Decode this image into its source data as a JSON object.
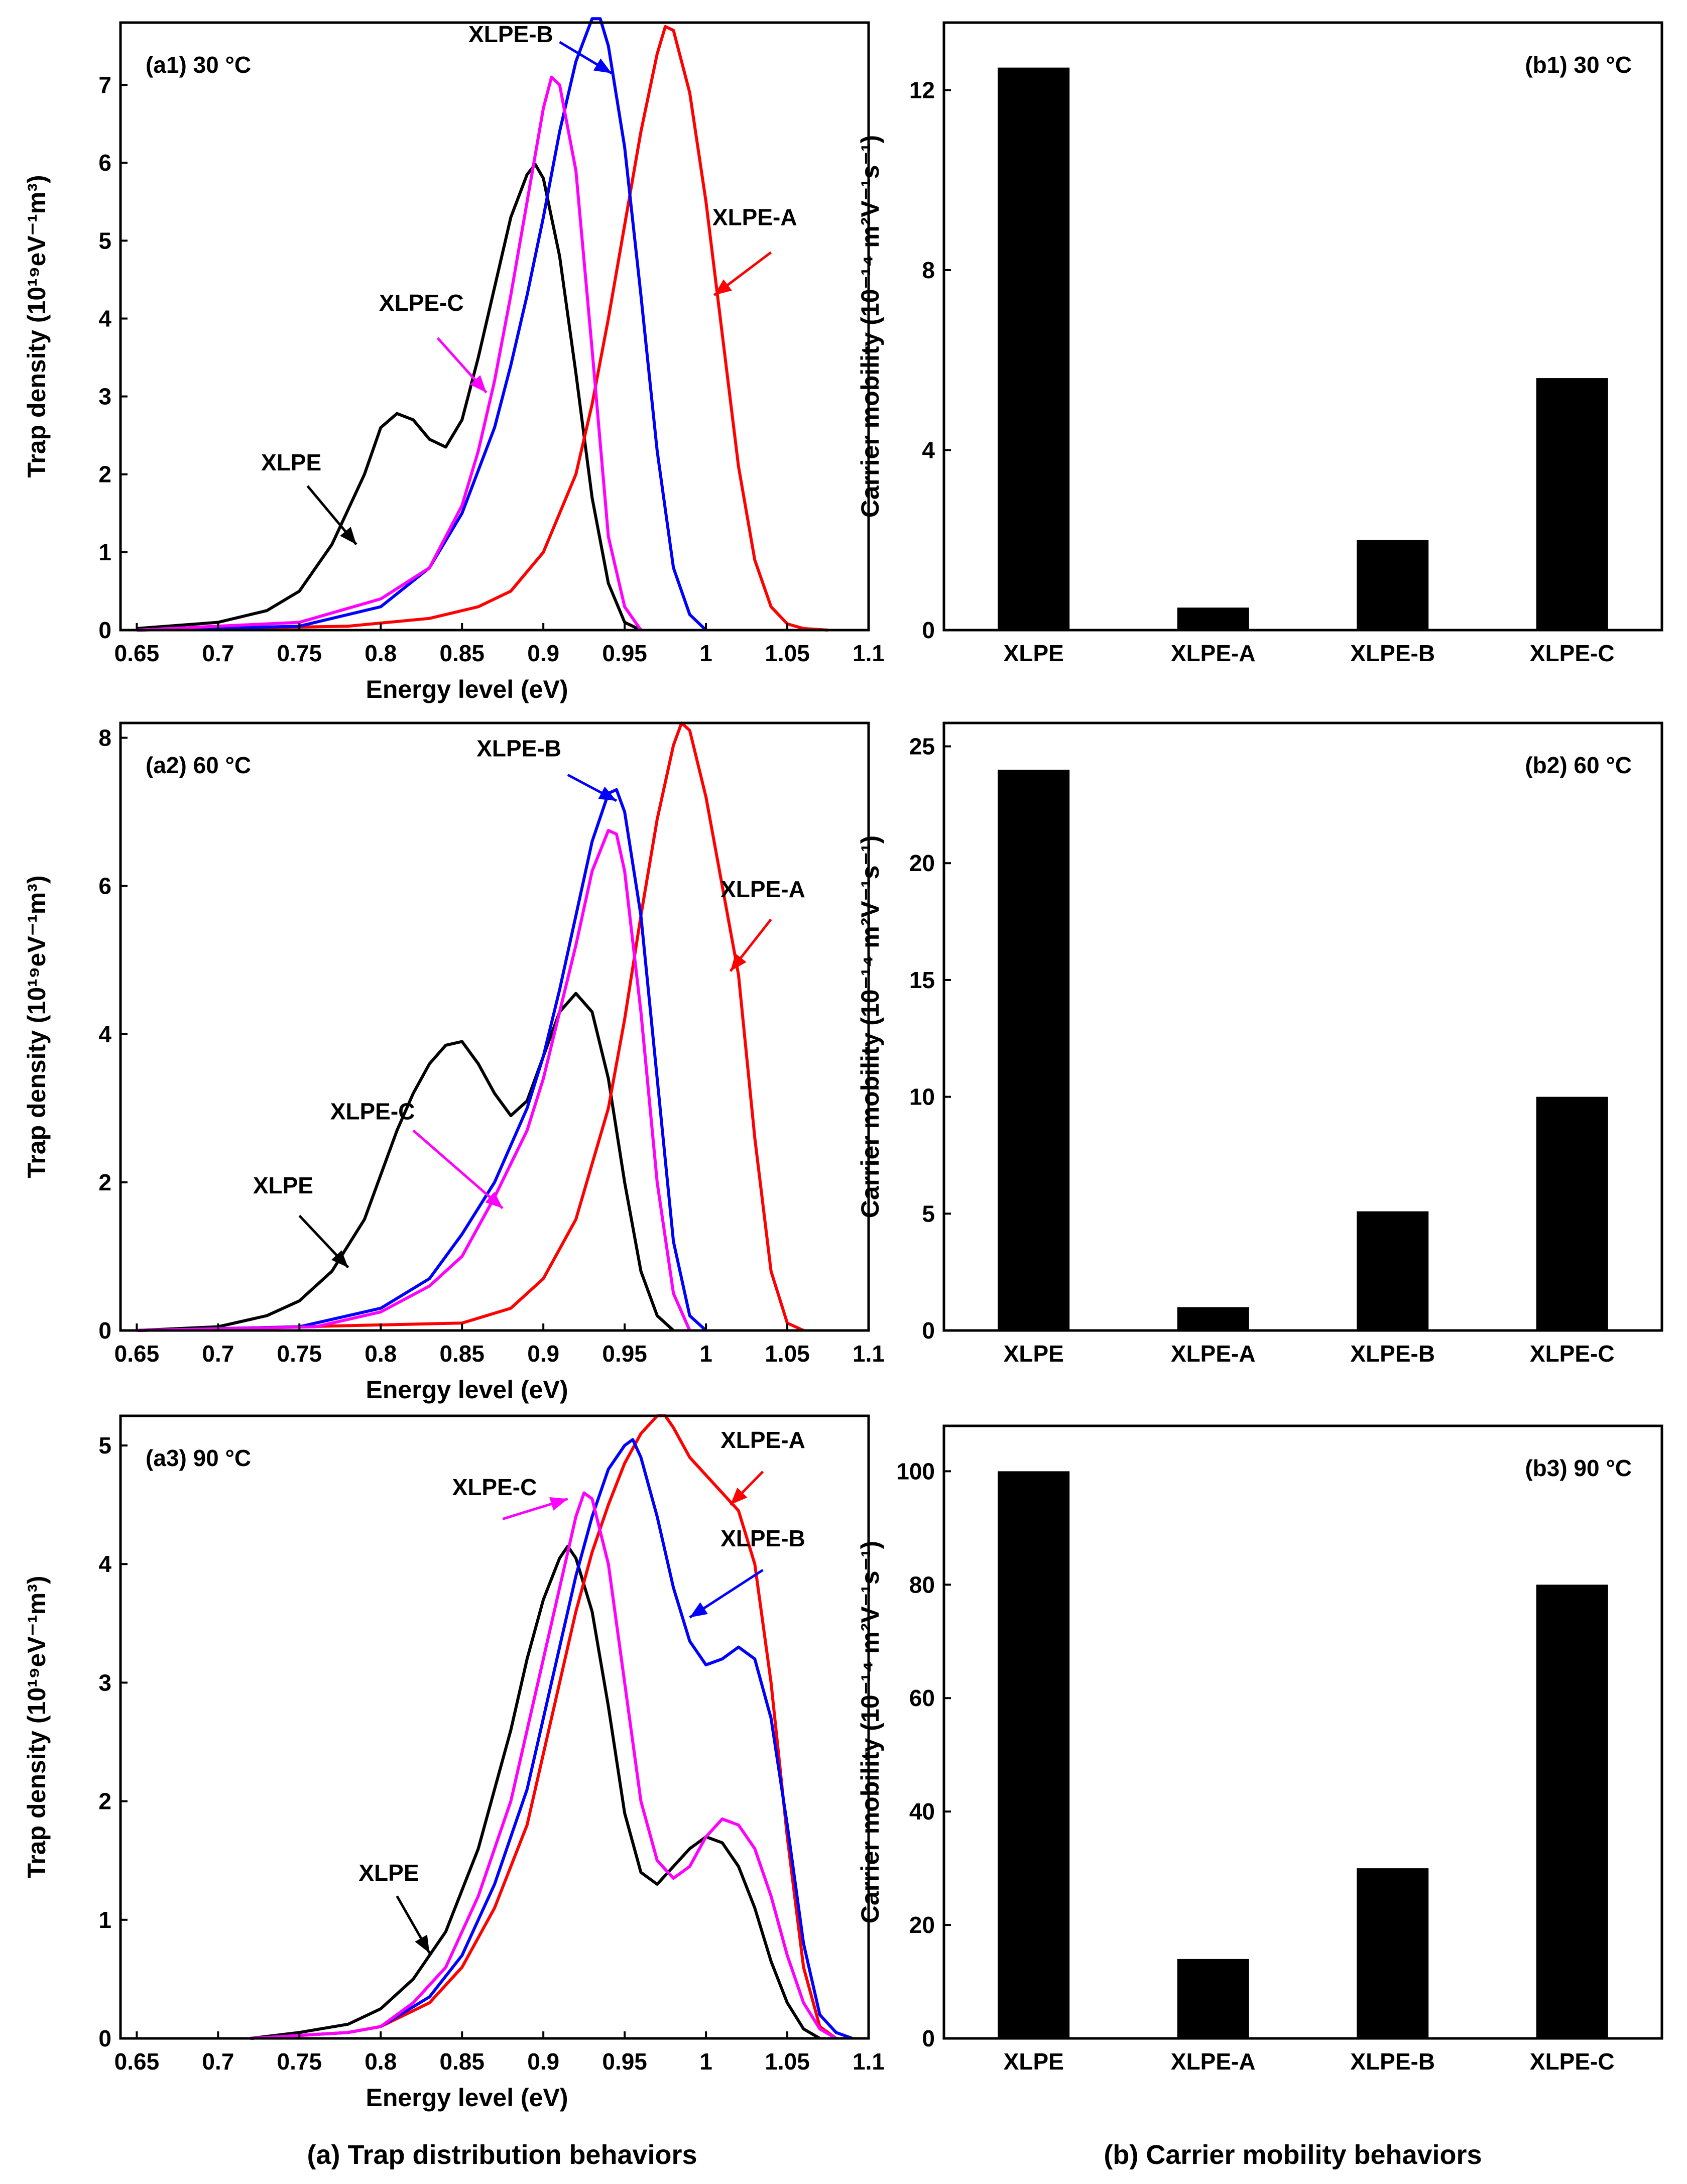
{
  "chart_data": [
    {
      "id": "a1",
      "type": "line",
      "panel_label": "(a1) 30 °C",
      "xlabel": "Energy level (eV)",
      "ylabel": "Trap density (10¹⁹eV⁻¹m³)",
      "xlim": [
        0.64,
        1.1
      ],
      "ylim": [
        0,
        7.8
      ],
      "xticks": [
        "0.65",
        "0.7",
        "0.75",
        "0.8",
        "0.85",
        "0.9",
        "0.95",
        "1",
        "1.05",
        "1.1"
      ],
      "yticks": [
        "0",
        "1",
        "2",
        "3",
        "4",
        "5",
        "6",
        "7"
      ],
      "series": [
        {
          "name": "XLPE",
          "color": "#000000",
          "x": [
            0.65,
            0.7,
            0.73,
            0.75,
            0.77,
            0.79,
            0.8,
            0.81,
            0.82,
            0.83,
            0.84,
            0.85,
            0.86,
            0.87,
            0.88,
            0.89,
            0.895,
            0.9,
            0.91,
            0.92,
            0.93,
            0.94,
            0.95,
            0.96
          ],
          "y": [
            0.02,
            0.1,
            0.25,
            0.5,
            1.1,
            2.0,
            2.6,
            2.78,
            2.7,
            2.45,
            2.35,
            2.7,
            3.5,
            4.4,
            5.3,
            5.85,
            5.98,
            5.8,
            4.8,
            3.3,
            1.7,
            0.6,
            0.1,
            0.0
          ]
        },
        {
          "name": "XLPE-A",
          "color": "#ff0000",
          "x": [
            0.65,
            0.78,
            0.83,
            0.86,
            0.88,
            0.9,
            0.92,
            0.93,
            0.94,
            0.95,
            0.96,
            0.97,
            0.975,
            0.98,
            0.99,
            1.0,
            1.01,
            1.02,
            1.03,
            1.04,
            1.05,
            1.06,
            1.075
          ],
          "y": [
            0.0,
            0.05,
            0.15,
            0.3,
            0.5,
            1.0,
            2.0,
            2.9,
            4.0,
            5.2,
            6.4,
            7.4,
            7.75,
            7.7,
            6.9,
            5.5,
            3.8,
            2.1,
            0.9,
            0.3,
            0.08,
            0.02,
            0.0
          ]
        },
        {
          "name": "XLPE-B",
          "color": "#0000ff",
          "x": [
            0.65,
            0.75,
            0.8,
            0.83,
            0.85,
            0.87,
            0.88,
            0.89,
            0.9,
            0.91,
            0.92,
            0.93,
            0.935,
            0.94,
            0.95,
            0.96,
            0.97,
            0.98,
            0.99,
            1.0
          ],
          "y": [
            0.0,
            0.05,
            0.3,
            0.8,
            1.5,
            2.6,
            3.4,
            4.3,
            5.3,
            6.4,
            7.3,
            7.85,
            7.85,
            7.5,
            6.2,
            4.3,
            2.3,
            0.8,
            0.2,
            0.0
          ]
        },
        {
          "name": "XLPE-C",
          "color": "#ff00ff",
          "x": [
            0.65,
            0.75,
            0.8,
            0.83,
            0.85,
            0.86,
            0.87,
            0.88,
            0.89,
            0.9,
            0.905,
            0.91,
            0.92,
            0.93,
            0.94,
            0.95,
            0.96
          ],
          "y": [
            0.0,
            0.1,
            0.4,
            0.8,
            1.6,
            2.3,
            3.2,
            4.3,
            5.5,
            6.7,
            7.1,
            7.0,
            5.9,
            3.6,
            1.2,
            0.3,
            0.0
          ]
        }
      ],
      "annotations": [
        {
          "text": "XLPE",
          "color": "#000000"
        },
        {
          "text": "XLPE-A",
          "color": "#ff0000"
        },
        {
          "text": "XLPE-B",
          "color": "#0000ff"
        },
        {
          "text": "XLPE-C",
          "color": "#ff00ff"
        }
      ]
    },
    {
      "id": "b1",
      "type": "bar",
      "panel_label": "(b1) 30 °C",
      "ylabel": "Carrier mobility (10⁻¹⁴ m²V⁻¹s⁻¹)",
      "categories": [
        "XLPE",
        "XLPE-A",
        "XLPE-B",
        "XLPE-C"
      ],
      "values": [
        12.5,
        0.5,
        2.0,
        5.6
      ],
      "ylim": [
        0,
        13.5
      ],
      "yticks": [
        "0",
        "4",
        "8",
        "12"
      ]
    },
    {
      "id": "a2",
      "type": "line",
      "panel_label": "(a2) 60 °C",
      "xlabel": "Energy level (eV)",
      "ylabel": "Trap density (10¹⁹eV⁻¹m³)",
      "xlim": [
        0.64,
        1.1
      ],
      "ylim": [
        0,
        8.2
      ],
      "xticks": [
        "0.65",
        "0.7",
        "0.75",
        "0.8",
        "0.85",
        "0.9",
        "0.95",
        "1",
        "1.05",
        "1.1"
      ],
      "yticks": [
        "0",
        "2",
        "4",
        "6",
        "8"
      ],
      "series": [
        {
          "name": "XLPE",
          "color": "#000000",
          "x": [
            0.65,
            0.7,
            0.73,
            0.75,
            0.77,
            0.79,
            0.8,
            0.81,
            0.82,
            0.83,
            0.84,
            0.85,
            0.86,
            0.87,
            0.88,
            0.89,
            0.9,
            0.91,
            0.92,
            0.93,
            0.94,
            0.95,
            0.96,
            0.97,
            0.98
          ],
          "y": [
            0.0,
            0.05,
            0.2,
            0.4,
            0.8,
            1.5,
            2.1,
            2.7,
            3.2,
            3.6,
            3.85,
            3.9,
            3.6,
            3.2,
            2.9,
            3.1,
            3.7,
            4.3,
            4.55,
            4.3,
            3.4,
            2.0,
            0.8,
            0.2,
            0.0
          ]
        },
        {
          "name": "XLPE-A",
          "color": "#ff0000",
          "x": [
            0.65,
            0.85,
            0.88,
            0.9,
            0.92,
            0.94,
            0.95,
            0.96,
            0.97,
            0.98,
            0.985,
            0.99,
            1.0,
            1.01,
            1.02,
            1.03,
            1.04,
            1.05,
            1.06
          ],
          "y": [
            0.0,
            0.1,
            0.3,
            0.7,
            1.5,
            3.0,
            4.2,
            5.6,
            6.9,
            7.9,
            8.2,
            8.1,
            7.2,
            6.0,
            4.8,
            2.6,
            0.8,
            0.1,
            0.0
          ]
        },
        {
          "name": "XLPE-B",
          "color": "#0000ff",
          "x": [
            0.65,
            0.75,
            0.8,
            0.83,
            0.85,
            0.87,
            0.89,
            0.9,
            0.91,
            0.92,
            0.93,
            0.94,
            0.945,
            0.95,
            0.96,
            0.97,
            0.98,
            0.99,
            1.0
          ],
          "y": [
            0.0,
            0.05,
            0.3,
            0.7,
            1.3,
            2.0,
            3.0,
            3.7,
            4.6,
            5.6,
            6.6,
            7.25,
            7.3,
            7.0,
            5.6,
            3.4,
            1.2,
            0.2,
            0.0
          ]
        },
        {
          "name": "XLPE-C",
          "color": "#ff00ff",
          "x": [
            0.65,
            0.76,
            0.8,
            0.83,
            0.85,
            0.87,
            0.89,
            0.9,
            0.91,
            0.92,
            0.93,
            0.94,
            0.945,
            0.95,
            0.96,
            0.97,
            0.98,
            0.99
          ],
          "y": [
            0.0,
            0.05,
            0.25,
            0.6,
            1.0,
            1.8,
            2.7,
            3.4,
            4.3,
            5.2,
            6.2,
            6.75,
            6.7,
            6.2,
            4.3,
            2.0,
            0.5,
            0.0
          ]
        }
      ],
      "annotations": [
        {
          "text": "XLPE",
          "color": "#000000"
        },
        {
          "text": "XLPE-A",
          "color": "#ff0000"
        },
        {
          "text": "XLPE-B",
          "color": "#0000ff"
        },
        {
          "text": "XLPE-C",
          "color": "#ff00ff"
        }
      ]
    },
    {
      "id": "b2",
      "type": "bar",
      "panel_label": "(b2) 60 °C",
      "ylabel": "Carrier mobility (10⁻¹⁴ m²V⁻¹s⁻¹)",
      "categories": [
        "XLPE",
        "XLPE-A",
        "XLPE-B",
        "XLPE-C"
      ],
      "values": [
        24,
        1,
        5.1,
        10
      ],
      "ylim": [
        0,
        26
      ],
      "yticks": [
        "0",
        "5",
        "10",
        "15",
        "20",
        "25"
      ]
    },
    {
      "id": "a3",
      "type": "line",
      "panel_label": "(a3) 90 °C",
      "xlabel": "Energy level (eV)",
      "ylabel": "Trap density (10¹⁹eV⁻¹m³)",
      "xlim": [
        0.64,
        1.1
      ],
      "ylim": [
        0,
        5.25
      ],
      "xticks": [
        "0.65",
        "0.7",
        "0.75",
        "0.8",
        "0.85",
        "0.9",
        "0.95",
        "1",
        "1.05",
        "1.1"
      ],
      "yticks": [
        "0",
        "1",
        "2",
        "3",
        "4",
        "5"
      ],
      "series": [
        {
          "name": "XLPE",
          "color": "#000000",
          "x": [
            0.72,
            0.75,
            0.78,
            0.8,
            0.82,
            0.84,
            0.86,
            0.88,
            0.89,
            0.9,
            0.91,
            0.915,
            0.92,
            0.93,
            0.94,
            0.95,
            0.96,
            0.97,
            0.98,
            0.99,
            1.0,
            1.01,
            1.02,
            1.03,
            1.04,
            1.05,
            1.06,
            1.07
          ],
          "y": [
            0.0,
            0.05,
            0.12,
            0.25,
            0.5,
            0.9,
            1.6,
            2.6,
            3.2,
            3.7,
            4.05,
            4.15,
            4.05,
            3.6,
            2.8,
            1.9,
            1.4,
            1.3,
            1.45,
            1.6,
            1.7,
            1.65,
            1.45,
            1.1,
            0.65,
            0.3,
            0.08,
            0.0
          ]
        },
        {
          "name": "XLPE-A",
          "color": "#ff0000",
          "x": [
            0.72,
            0.78,
            0.8,
            0.83,
            0.85,
            0.87,
            0.89,
            0.9,
            0.91,
            0.92,
            0.93,
            0.94,
            0.95,
            0.96,
            0.97,
            0.975,
            0.98,
            0.99,
            1.0,
            1.01,
            1.02,
            1.03,
            1.04,
            1.05,
            1.06,
            1.07,
            1.08
          ],
          "y": [
            0.0,
            0.05,
            0.1,
            0.3,
            0.6,
            1.1,
            1.8,
            2.4,
            3.0,
            3.6,
            4.1,
            4.5,
            4.85,
            5.1,
            5.25,
            5.25,
            5.15,
            4.9,
            4.75,
            4.6,
            4.45,
            4.0,
            3.0,
            1.7,
            0.6,
            0.1,
            0.0
          ]
        },
        {
          "name": "XLPE-B",
          "color": "#0000ff",
          "x": [
            0.72,
            0.78,
            0.8,
            0.83,
            0.85,
            0.87,
            0.89,
            0.9,
            0.91,
            0.92,
            0.93,
            0.94,
            0.95,
            0.955,
            0.96,
            0.97,
            0.98,
            0.99,
            1.0,
            1.01,
            1.02,
            1.03,
            1.04,
            1.05,
            1.06,
            1.07,
            1.08,
            1.09
          ],
          "y": [
            0.0,
            0.05,
            0.1,
            0.35,
            0.7,
            1.3,
            2.1,
            2.7,
            3.3,
            3.9,
            4.4,
            4.8,
            5.0,
            5.05,
            4.9,
            4.4,
            3.8,
            3.35,
            3.15,
            3.2,
            3.3,
            3.2,
            2.7,
            1.8,
            0.8,
            0.2,
            0.05,
            0.0
          ]
        },
        {
          "name": "XLPE-C",
          "color": "#ff00ff",
          "x": [
            0.72,
            0.78,
            0.8,
            0.82,
            0.84,
            0.86,
            0.88,
            0.89,
            0.9,
            0.91,
            0.92,
            0.925,
            0.93,
            0.94,
            0.95,
            0.96,
            0.97,
            0.98,
            0.99,
            1.0,
            1.01,
            1.02,
            1.03,
            1.04,
            1.05,
            1.06,
            1.07,
            1.08
          ],
          "y": [
            0.0,
            0.05,
            0.1,
            0.3,
            0.6,
            1.2,
            2.0,
            2.6,
            3.2,
            3.8,
            4.4,
            4.6,
            4.55,
            4.0,
            3.0,
            2.0,
            1.5,
            1.35,
            1.45,
            1.7,
            1.85,
            1.8,
            1.6,
            1.2,
            0.7,
            0.3,
            0.08,
            0.0
          ]
        }
      ],
      "annotations": [
        {
          "text": "XLPE",
          "color": "#000000"
        },
        {
          "text": "XLPE-A",
          "color": "#ff0000"
        },
        {
          "text": "XLPE-B",
          "color": "#0000ff"
        },
        {
          "text": "XLPE-C",
          "color": "#ff00ff"
        }
      ]
    },
    {
      "id": "b3",
      "type": "bar",
      "panel_label": "(b3) 90 °C",
      "ylabel": "Carrier mobility (10⁻¹⁴ m²V⁻¹s⁻¹)",
      "categories": [
        "XLPE",
        "XLPE-A",
        "XLPE-B",
        "XLPE-C"
      ],
      "values": [
        100,
        14,
        30,
        80
      ],
      "ylim": [
        0,
        108
      ],
      "yticks": [
        "0",
        "20",
        "40",
        "60",
        "80",
        "100"
      ]
    }
  ],
  "captions": {
    "left": "(a) Trap distribution behaviors",
    "right": "(b) Carrier mobility behaviors"
  }
}
